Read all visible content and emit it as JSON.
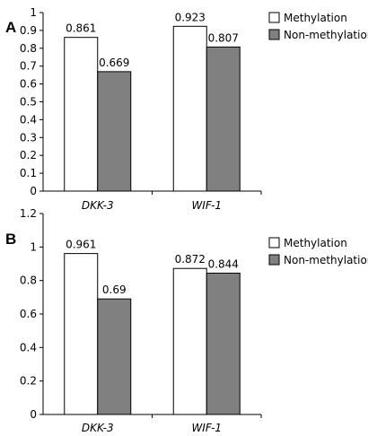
{
  "chart_data": [
    {
      "panel": "A",
      "type": "bar",
      "categories": [
        "DKK-3",
        "WIF-1"
      ],
      "series": [
        {
          "name": "Methylation",
          "values": [
            0.861,
            0.923
          ],
          "labels": [
            "0.861",
            "0.923"
          ],
          "color": "#ffffff"
        },
        {
          "name": "Non-methylation",
          "values": [
            0.669,
            0.807
          ],
          "labels": [
            "0.669",
            "0.807"
          ],
          "color": "#808080"
        }
      ],
      "yticks": [
        "0",
        "0.1",
        "0.2",
        "0.3",
        "0.4",
        "0.5",
        "0.6",
        "0.7",
        "0.8",
        "0.9",
        "1"
      ],
      "ylim": [
        0,
        1
      ],
      "grid": false,
      "legend": "top-right"
    },
    {
      "panel": "B",
      "type": "bar",
      "categories": [
        "DKK-3",
        "WIF-1"
      ],
      "series": [
        {
          "name": "Methylation",
          "values": [
            0.961,
            0.872
          ],
          "labels": [
            "0.961",
            "0.872"
          ],
          "color": "#ffffff"
        },
        {
          "name": "Non-methylation",
          "values": [
            0.69,
            0.844
          ],
          "labels": [
            "0.69",
            "0.844"
          ],
          "color": "#808080"
        }
      ],
      "yticks": [
        "0",
        "0.2",
        "0.4",
        "0.6",
        "0.8",
        "1",
        "1.2"
      ],
      "ylim": [
        0,
        1.2
      ],
      "grid": false,
      "legend": "top-right"
    }
  ]
}
